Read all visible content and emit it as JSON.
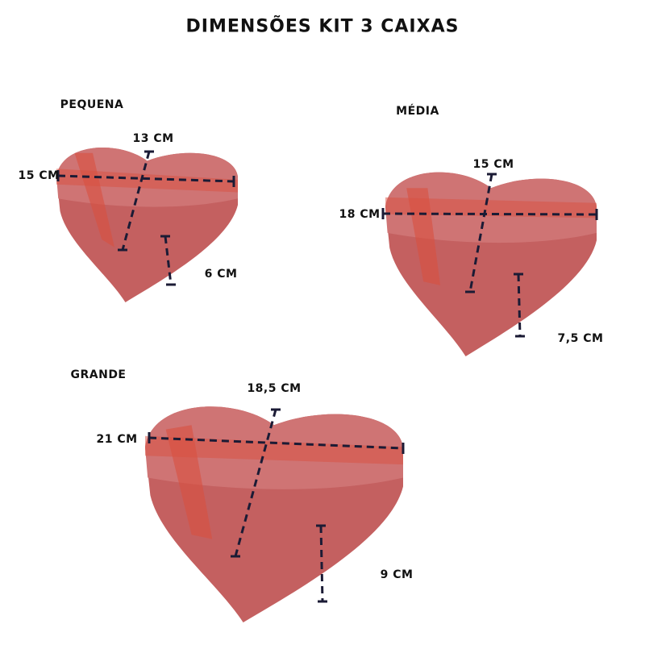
{
  "title": "DIMENSÕES KIT 3 CAIXAS",
  "colors": {
    "lid": "#cf7474",
    "side": "#c46060",
    "ribbon": "#d9503f",
    "foil": "#e8c070",
    "dimension_line": "#1b1b35"
  },
  "boxes": [
    {
      "name": "PEQUENA",
      "width": "15 CM",
      "depth": "13 CM",
      "height": "6 CM"
    },
    {
      "name": "MÉDIA",
      "width": "18 CM",
      "depth": "15 CM",
      "height": "7,5 CM"
    },
    {
      "name": "GRANDE",
      "width": "21 CM",
      "depth": "18,5 CM",
      "height": "9 CM"
    }
  ]
}
